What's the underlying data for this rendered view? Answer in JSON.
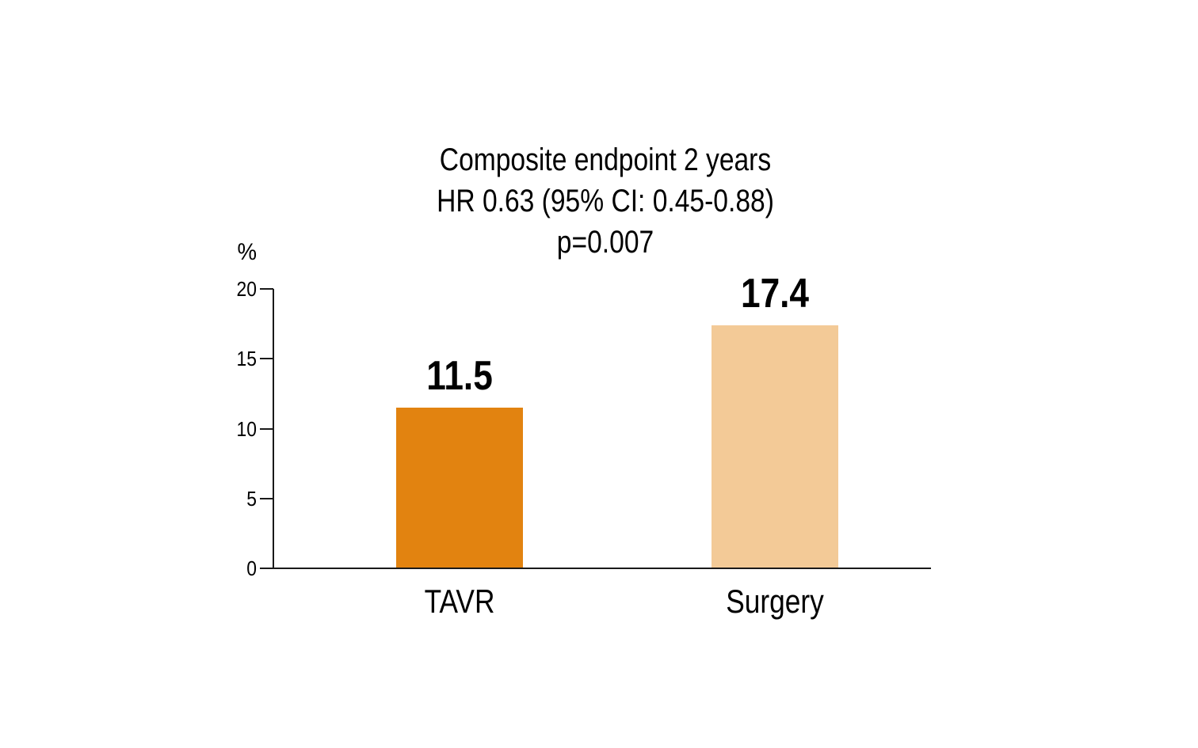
{
  "page": {
    "background_color": "#ffffff",
    "text_color": "#000000"
  },
  "chart_data": {
    "type": "bar",
    "title": "Composite endpoint 2 years",
    "title_lines": [
      "Composite endpoint 2 years",
      "HR 0.63 (95% CI: 0.45-0.88)",
      "p=0.007"
    ],
    "categories": [
      "TAVR",
      "Surgery"
    ],
    "values": [
      11.5,
      17.4
    ],
    "value_labels": [
      "11.5",
      "17.4"
    ],
    "bar_colors": [
      "#E28310",
      "#F3CA97"
    ],
    "xlabel": "",
    "ylabel": "%",
    "ylim": [
      0,
      20
    ],
    "yticks": [
      0,
      5,
      10,
      15,
      20
    ],
    "grid": false,
    "legend": "none",
    "axis_color": "#1a1a1a"
  }
}
